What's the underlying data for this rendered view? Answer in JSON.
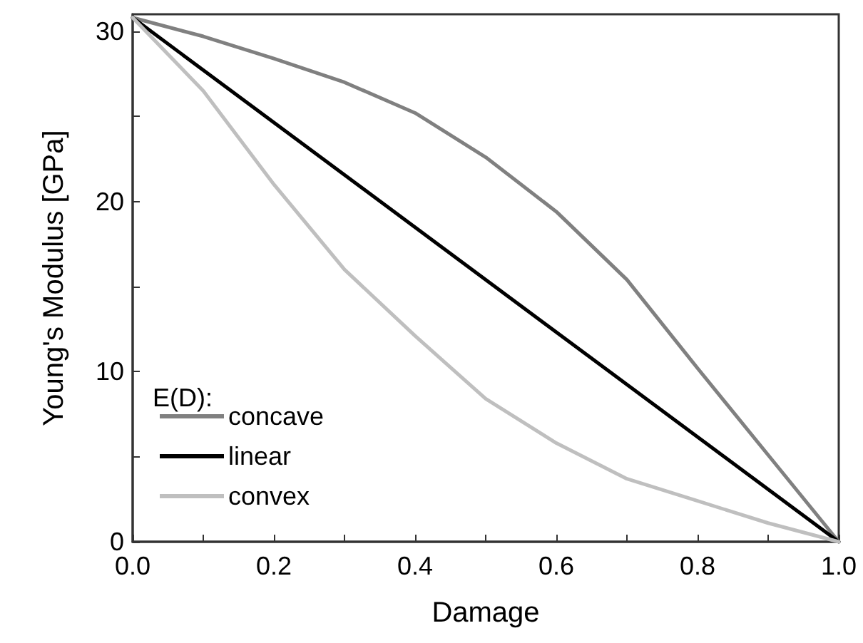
{
  "chart_data": {
    "type": "line",
    "xlabel": "Damage",
    "ylabel": "Young's Modulus [GPa]",
    "legend_title": "E(D):",
    "legend": "bottom left",
    "grid": false,
    "marker": "none",
    "line_style": "solid",
    "xlim": [
      0,
      1
    ],
    "ylim": [
      0,
      31
    ],
    "xticks": [
      {
        "value": 0,
        "label": "0.0"
      },
      {
        "value": 0.1,
        "label": null
      },
      {
        "value": 0.2,
        "label": "0.2"
      },
      {
        "value": 0.3,
        "label": null
      },
      {
        "value": 0.4,
        "label": "0.4"
      },
      {
        "value": 0.5,
        "label": null
      },
      {
        "value": 0.6,
        "label": "0.6"
      },
      {
        "value": 0.7,
        "label": null
      },
      {
        "value": 0.8,
        "label": "0.8"
      },
      {
        "value": 0.9,
        "label": null
      },
      {
        "value": 1,
        "label": "1.0"
      }
    ],
    "yticks": [
      0,
      {
        "value": 5,
        "label": null
      },
      10,
      {
        "value": 15,
        "label": null
      },
      20,
      {
        "value": 25,
        "label": null
      },
      30
    ],
    "series": [
      {
        "name": "concave",
        "color": "#808080",
        "x": [
          0,
          0.1,
          0.2,
          0.3,
          0.4,
          0.5,
          0.6,
          0.7,
          0.8,
          0.9,
          1
        ],
        "values": [
          30.8,
          29.7,
          28.4,
          27.0,
          25.2,
          22.6,
          19.4,
          15.4,
          10.2,
          5.1,
          0
        ]
      },
      {
        "name": "linear",
        "color": "#000000",
        "x": [
          0,
          1
        ],
        "values": [
          30.8,
          0
        ]
      },
      {
        "name": "convex",
        "color": "#bfbfbf",
        "x": [
          0,
          0.1,
          0.2,
          0.3,
          0.4,
          0.5,
          0.6,
          0.7,
          0.8,
          0.9,
          1
        ],
        "values": [
          30.8,
          26.5,
          21.0,
          16.0,
          12.1,
          8.4,
          5.8,
          3.7,
          2.4,
          1.1,
          0
        ]
      }
    ]
  }
}
